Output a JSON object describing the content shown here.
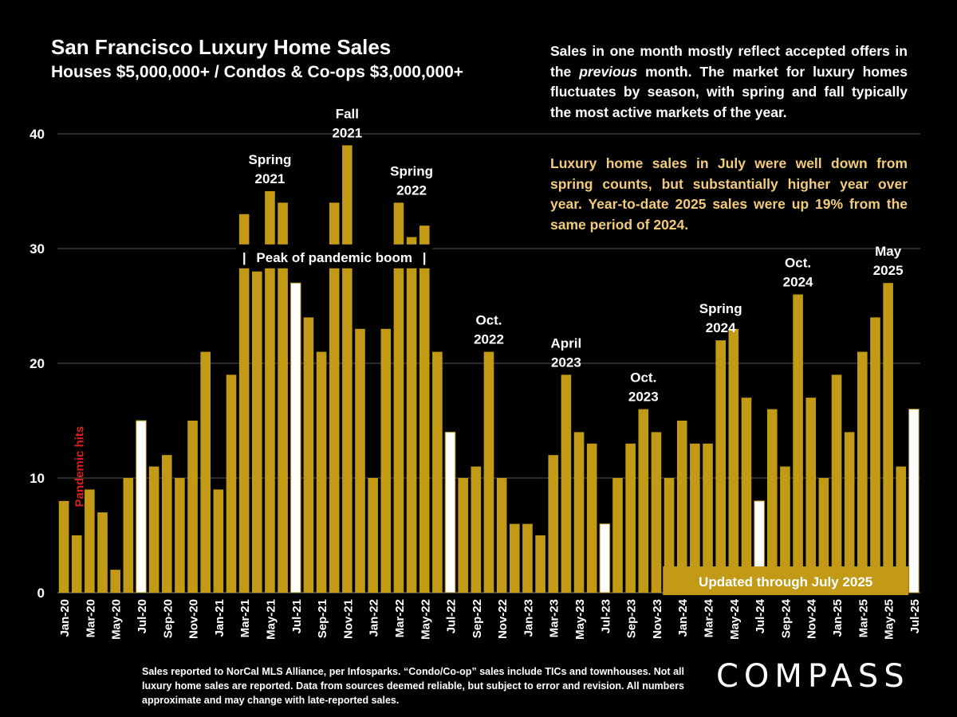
{
  "title": "San Francisco Luxury Home Sales",
  "subtitle": "Houses $5,000,000+ / Condos & Co-ops $3,000,000+",
  "note_main": "Sales in one month mostly reflect accepted offers in the previous month. The market for luxury homes fluctuates by season, with spring and fall typically the most active markets of the year.",
  "note_highlight": "Luxury home sales in July were well down from spring counts, but substantially higher year over year. Year-to-date 2025 sales were up 19% from the same period of 2024.",
  "footer": "Sales reported to NorCal MLS Alliance, per  Infosparks. “Condo/Co-op” sales include TICs and townhouses. Not all luxury home sales are reported. Data from sources deemed reliable, but subject to error and revision. All numbers approximate and may change with late-reported sales.",
  "logo_text": "COMPASS",
  "colors": {
    "bar": "#c39a16",
    "highlight_bar": "#ffffff",
    "annotation_red": "#d91e1e",
    "note_highlight": "#f2cc7a",
    "grid": "#555555"
  },
  "chart_data": {
    "type": "bar",
    "ylim": [
      0,
      40
    ],
    "yticks": [
      0,
      10,
      20,
      30,
      40
    ],
    "grid": true,
    "categories": [
      "Jan-20",
      "Feb-20",
      "Mar-20",
      "Apr-20",
      "May-20",
      "Jun-20",
      "Jul-20",
      "Aug-20",
      "Sep-20",
      "Oct-20",
      "Nov-20",
      "Dec-20",
      "Jan-21",
      "Feb-21",
      "Mar-21",
      "Apr-21",
      "May-21",
      "Jun-21",
      "Jul-21",
      "Aug-21",
      "Sep-21",
      "Oct-21",
      "Nov-21",
      "Dec-21",
      "Jan-22",
      "Feb-22",
      "Mar-22",
      "Apr-22",
      "May-22",
      "Jun-22",
      "Jul-22",
      "Aug-22",
      "Sep-22",
      "Oct-22",
      "Nov-22",
      "Dec-22",
      "Jan-23",
      "Feb-23",
      "Mar-23",
      "Apr-23",
      "May-23",
      "Jun-23",
      "Jul-23",
      "Aug-23",
      "Sep-23",
      "Oct-23",
      "Nov-23",
      "Dec-23",
      "Jan-24",
      "Feb-24",
      "Mar-24",
      "Apr-24",
      "May-24",
      "Jun-24",
      "Jul-24",
      "Aug-24",
      "Sep-24",
      "Oct-24",
      "Nov-24",
      "Dec-24",
      "Jan-25",
      "Feb-25",
      "Mar-25",
      "Apr-25",
      "May-25",
      "Jun-25",
      "Jul-25"
    ],
    "tick_labels": [
      "Jan-20",
      "Mar-20",
      "May-20",
      "Jul-20",
      "Sep-20",
      "Nov-20",
      "Jan-21",
      "Mar-21",
      "May-21",
      "Jul-21",
      "Sep-21",
      "Nov-21",
      "Jan-22",
      "Mar-22",
      "May-22",
      "Jul-22",
      "Sep-22",
      "Nov-22",
      "Jan-23",
      "Mar-23",
      "May-23",
      "Jul-23",
      "Sep-23",
      "Nov-23",
      "Jan-24",
      "Mar-24",
      "May-24",
      "Jul-24",
      "Sep-24",
      "Nov-24",
      "Jan-25",
      "Mar-25",
      "May-25",
      "Jul-25"
    ],
    "values": [
      8,
      5,
      9,
      7,
      2,
      10,
      15,
      11,
      12,
      10,
      15,
      21,
      9,
      19,
      33,
      28,
      35,
      34,
      27,
      24,
      21,
      34,
      39,
      23,
      10,
      23,
      34,
      31,
      32,
      21,
      14,
      10,
      11,
      21,
      10,
      6,
      6,
      5,
      12,
      19,
      14,
      13,
      6,
      10,
      13,
      16,
      14,
      10,
      15,
      13,
      13,
      22,
      23,
      17,
      8,
      16,
      11,
      26,
      17,
      10,
      19,
      14,
      21,
      24,
      27,
      11,
      16
    ],
    "highlighted": [
      "Jul-20",
      "Jul-21",
      "Jul-22",
      "Jul-23",
      "Jul-24",
      "Jul-25"
    ],
    "annotations": [
      {
        "lines": [
          "Spring",
          "2021"
        ],
        "at": "May-21",
        "y": 35
      },
      {
        "lines": [
          "Fall",
          "2021"
        ],
        "at": "Nov-21",
        "y": 39
      },
      {
        "lines": [
          "Spring",
          "2022"
        ],
        "at": "Apr-22",
        "y": 34
      },
      {
        "lines": [
          "Oct.",
          "2022"
        ],
        "at": "Oct-22",
        "y": 21
      },
      {
        "lines": [
          "April",
          "2023"
        ],
        "at": "Apr-23",
        "y": 19
      },
      {
        "lines": [
          "Oct.",
          "2023"
        ],
        "at": "Oct-23",
        "y": 16
      },
      {
        "lines": [
          "Spring",
          "2024"
        ],
        "at": "Apr-24",
        "y": 22
      },
      {
        "lines": [
          "Oct.",
          "2024"
        ],
        "at": "Oct-24",
        "y": 26
      },
      {
        "lines": [
          "May",
          "2025"
        ],
        "at": "May-25",
        "y": 27
      }
    ],
    "pandemic_label": "Pandemic hits",
    "band_label": "Peak of pandemic boom",
    "band_range": [
      "Mar-21",
      "May-22"
    ],
    "band_y": 28,
    "updated_label": "Updated through July 2025"
  }
}
